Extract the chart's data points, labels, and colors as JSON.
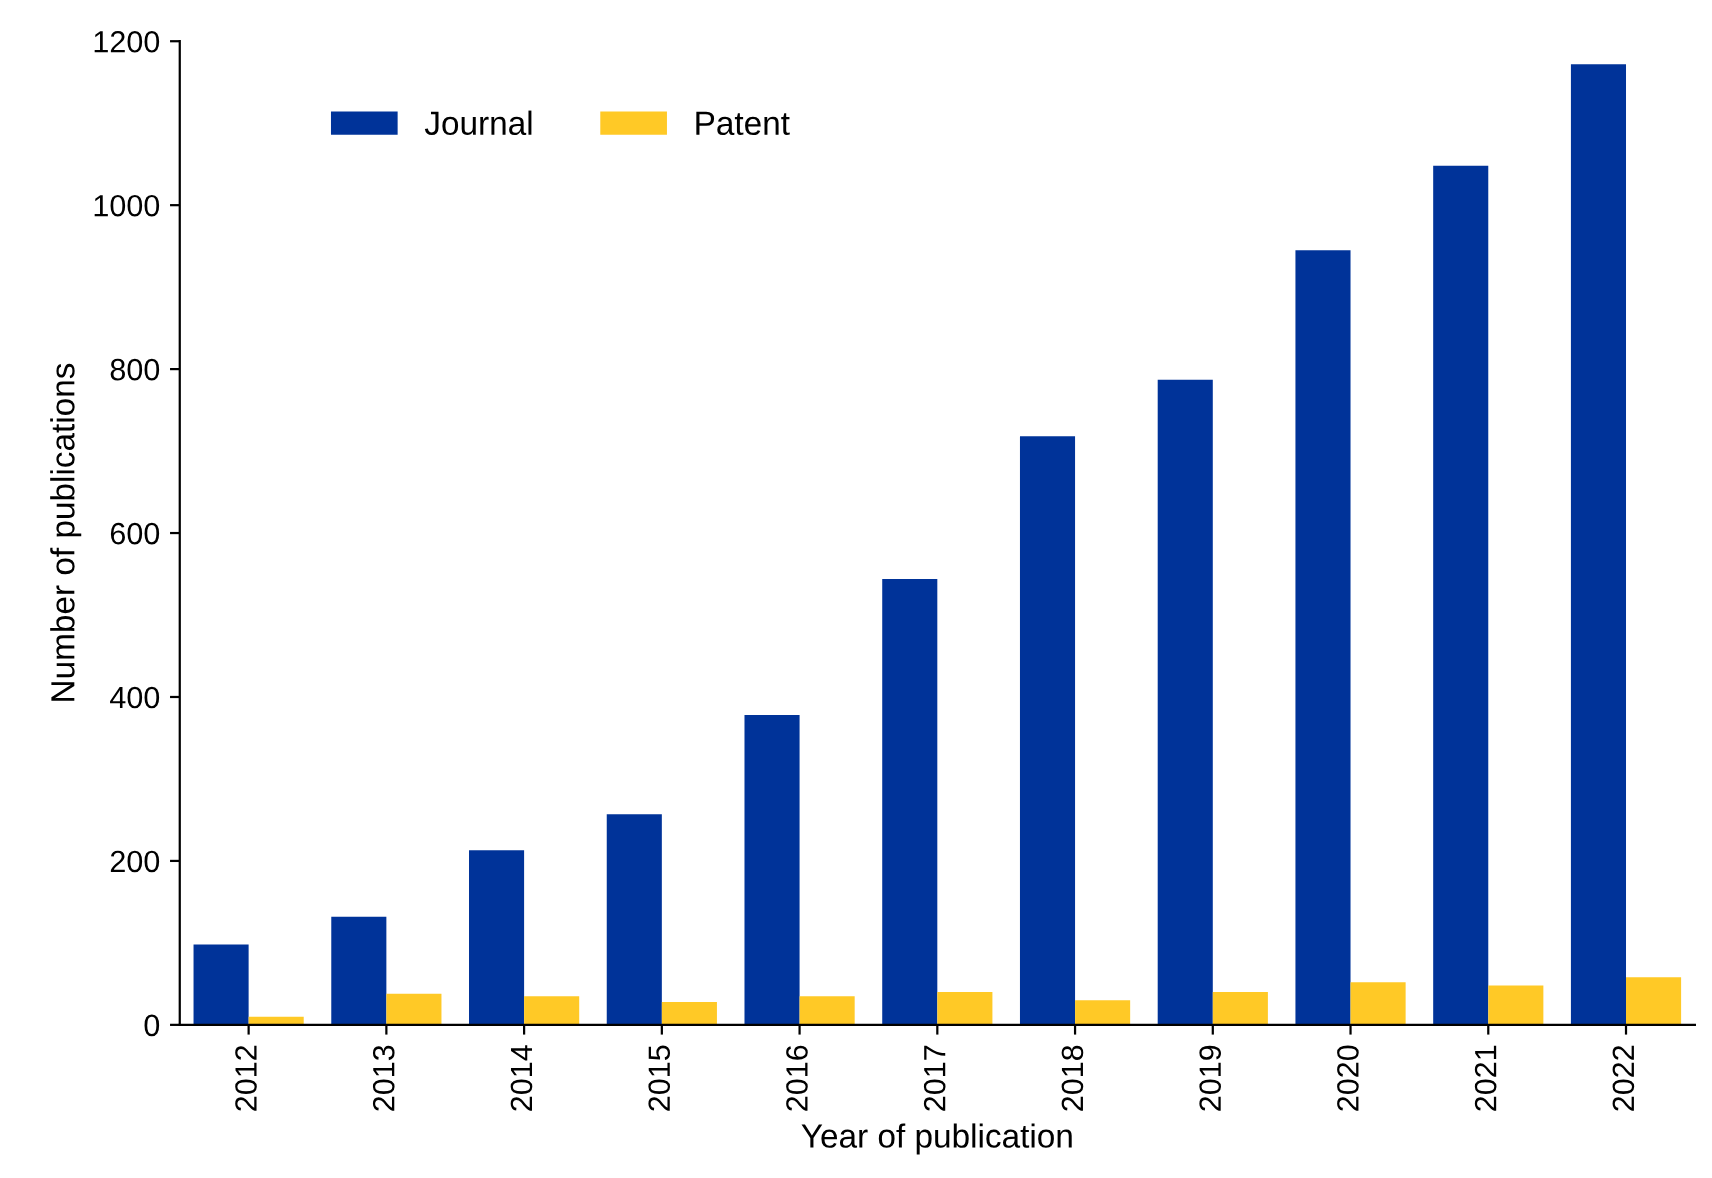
{
  "chart_data": {
    "type": "bar",
    "xlabel": "Year of publication",
    "ylabel": "Number of publications",
    "categories": [
      "2012",
      "2013",
      "2014",
      "2015",
      "2016",
      "2017",
      "2018",
      "2019",
      "2020",
      "2021",
      "2022"
    ],
    "series": [
      {
        "name": "Journal",
        "color": "#003399",
        "values": [
          98,
          132,
          213,
          257,
          378,
          544,
          718,
          787,
          945,
          1048,
          1172
        ]
      },
      {
        "name": "Patent",
        "color": "#ffc926",
        "values": [
          10,
          38,
          35,
          28,
          35,
          40,
          30,
          40,
          52,
          48,
          58
        ]
      }
    ],
    "ylim": [
      0,
      1200
    ],
    "yticks": [
      0,
      200,
      400,
      600,
      800,
      1000,
      1200
    ],
    "grid": false,
    "legend": "top left"
  }
}
